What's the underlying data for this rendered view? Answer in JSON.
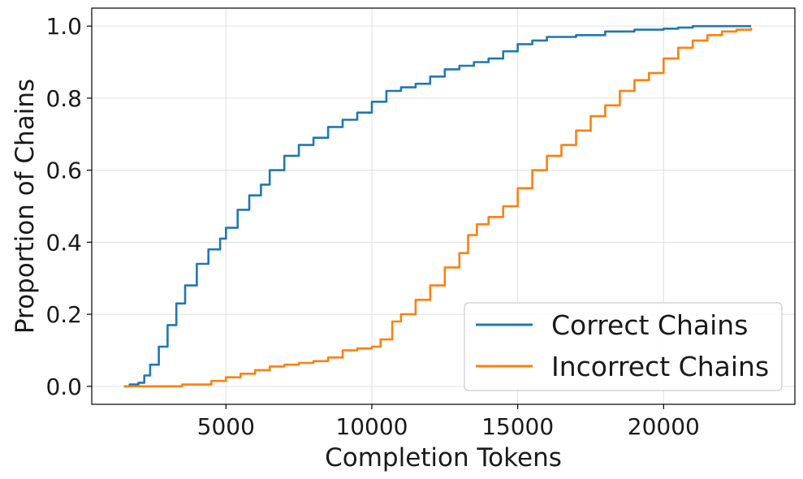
{
  "chart_data": {
    "type": "line",
    "title": "",
    "xlabel": "Completion Tokens",
    "ylabel": "Proportion of Chains",
    "xlim": [
      400,
      24500
    ],
    "ylim": [
      -0.05,
      1.05
    ],
    "xticks": [
      5000,
      10000,
      15000,
      20000
    ],
    "yticks": [
      0.0,
      0.2,
      0.4,
      0.6,
      0.8,
      1.0
    ],
    "ytick_labels": [
      "0.0",
      "0.2",
      "0.4",
      "0.6",
      "0.8",
      "1.0"
    ],
    "grid": true,
    "legend_position": "lower-right",
    "series": [
      {
        "name": "Correct Chains",
        "color": "#1f77b4",
        "x": [
          1500,
          1700,
          2000,
          2200,
          2400,
          2700,
          3000,
          3300,
          3600,
          4000,
          4400,
          4800,
          5000,
          5400,
          5800,
          6200,
          6500,
          7000,
          7500,
          8000,
          8500,
          9000,
          9500,
          10000,
          10500,
          11000,
          11500,
          12000,
          12500,
          13000,
          13500,
          14000,
          14500,
          15000,
          15500,
          16000,
          17000,
          18000,
          19000,
          20000,
          20500,
          21000,
          22000,
          23000
        ],
        "y": [
          0.0,
          0.005,
          0.01,
          0.03,
          0.06,
          0.11,
          0.17,
          0.23,
          0.28,
          0.34,
          0.38,
          0.41,
          0.44,
          0.49,
          0.53,
          0.56,
          0.6,
          0.64,
          0.67,
          0.69,
          0.72,
          0.74,
          0.76,
          0.79,
          0.82,
          0.83,
          0.84,
          0.86,
          0.88,
          0.89,
          0.9,
          0.91,
          0.93,
          0.95,
          0.96,
          0.97,
          0.975,
          0.985,
          0.99,
          0.993,
          0.996,
          1.0,
          1.0,
          1.0
        ]
      },
      {
        "name": "Incorrect Chains",
        "color": "#ff7f0e",
        "x": [
          1500,
          2500,
          3500,
          4500,
          5000,
          5500,
          6000,
          6500,
          7000,
          7500,
          8000,
          8500,
          9000,
          9500,
          10000,
          10300,
          10700,
          11000,
          11500,
          12000,
          12500,
          13000,
          13300,
          13600,
          14000,
          14500,
          15000,
          15500,
          16000,
          16500,
          17000,
          17500,
          18000,
          18500,
          19000,
          19500,
          20000,
          20500,
          21000,
          21500,
          22000,
          22500,
          23000
        ],
        "y": [
          0.0,
          0.0,
          0.005,
          0.015,
          0.025,
          0.035,
          0.045,
          0.055,
          0.06,
          0.065,
          0.07,
          0.08,
          0.1,
          0.105,
          0.11,
          0.13,
          0.18,
          0.2,
          0.24,
          0.28,
          0.33,
          0.37,
          0.42,
          0.45,
          0.47,
          0.5,
          0.55,
          0.6,
          0.64,
          0.67,
          0.71,
          0.75,
          0.78,
          0.82,
          0.85,
          0.87,
          0.91,
          0.94,
          0.96,
          0.975,
          0.985,
          0.99,
          0.995
        ]
      }
    ]
  }
}
